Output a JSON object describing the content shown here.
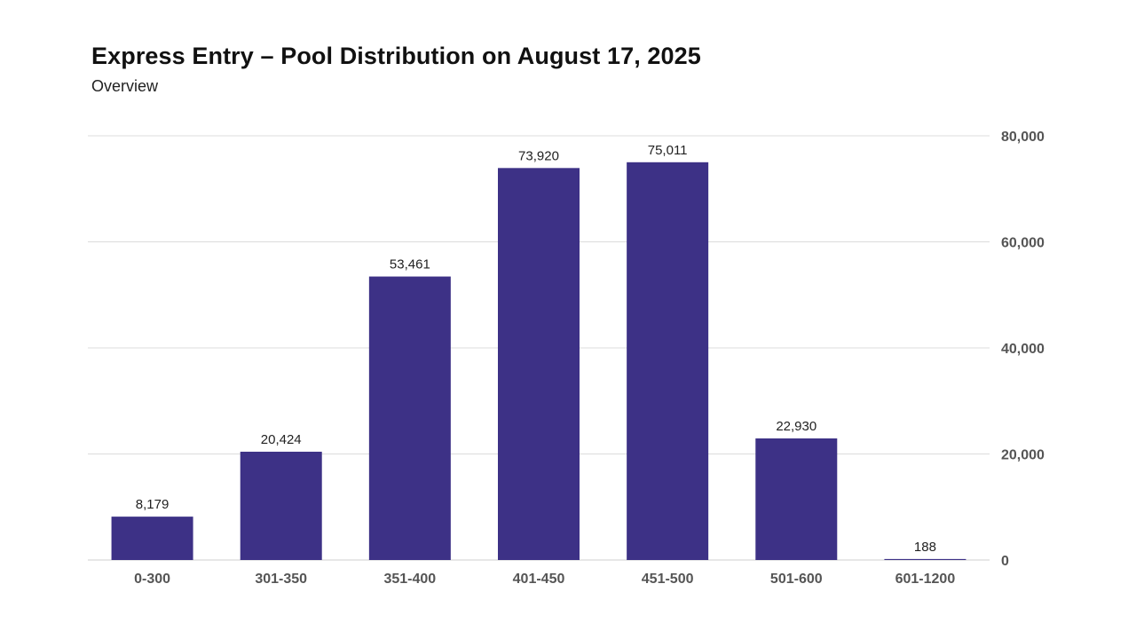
{
  "chart_data": {
    "type": "bar",
    "title": "Express Entry – Pool Distribution on August 17, 2025",
    "subtitle": "Overview",
    "categories": [
      "0-300",
      "301-350",
      "351-400",
      "401-450",
      "451-500",
      "501-600",
      "601-1200"
    ],
    "values": [
      8179,
      20424,
      53461,
      73920,
      75011,
      22930,
      188
    ],
    "data_labels": [
      "8,179",
      "20,424",
      "53,461",
      "73,920",
      "75,011",
      "22,930",
      "188"
    ],
    "y_ticks": [
      0,
      20000,
      40000,
      60000,
      80000
    ],
    "y_tick_labels": [
      "0",
      "20,000",
      "40,000",
      "60,000",
      "80,000"
    ],
    "ylim": [
      0,
      80000
    ],
    "y_axis_position": "right",
    "grid": true,
    "legend": "none",
    "bar_color": "#3d3186"
  }
}
